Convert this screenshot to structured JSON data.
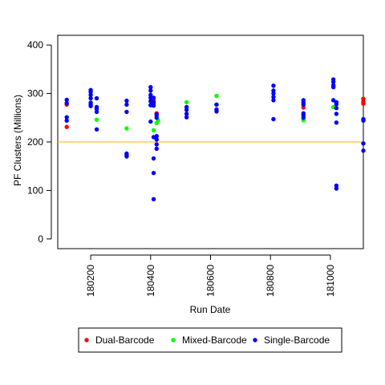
{
  "chart_data": {
    "type": "scatter",
    "title": "",
    "xlabel": "Run Date",
    "ylabel": "PF Clusters (Millions)",
    "xlim": [
      180090,
      181110
    ],
    "ylim": [
      -20,
      420
    ],
    "xticks": [
      180200,
      180400,
      180600,
      180800,
      181000
    ],
    "xtick_labels": [
      "180200",
      "180400",
      "180600",
      "180800",
      "181000"
    ],
    "yticks": [
      0,
      100,
      200,
      300,
      400
    ],
    "ytick_labels": [
      "0",
      "100",
      "200",
      "300",
      "400"
    ],
    "threshold_line": {
      "y": 200,
      "color": "#FFB000"
    },
    "grid": false,
    "legend_position": "bottom",
    "series": [
      {
        "name": "Dual-Barcode",
        "color": "#FF0000",
        "points": [
          [
            180120,
            277
          ],
          [
            180120,
            231
          ],
          [
            180410,
            286
          ],
          [
            180410,
            280
          ],
          [
            180420,
            259
          ],
          [
            180420,
            254
          ],
          [
            180910,
            271
          ],
          [
            181110,
            289
          ],
          [
            181110,
            283
          ],
          [
            181110,
            279
          ]
        ]
      },
      {
        "name": "Mixed-Barcode",
        "color": "#00FF00",
        "points": [
          [
            180220,
            246
          ],
          [
            180320,
            228
          ],
          [
            180400,
            276
          ],
          [
            180410,
            224
          ],
          [
            180420,
            239
          ],
          [
            180425,
            245
          ],
          [
            180520,
            282
          ],
          [
            180620,
            295
          ],
          [
            180620,
            277
          ],
          [
            180910,
            245
          ],
          [
            181010,
            272
          ]
        ]
      },
      {
        "name": "Single-Barcode",
        "color": "#0000FF",
        "points": [
          [
            180120,
            287
          ],
          [
            180120,
            280
          ],
          [
            180120,
            251
          ],
          [
            180120,
            244
          ],
          [
            180200,
            307
          ],
          [
            180200,
            303
          ],
          [
            180200,
            297
          ],
          [
            180200,
            290
          ],
          [
            180200,
            281
          ],
          [
            180200,
            277
          ],
          [
            180200,
            274
          ],
          [
            180220,
            290
          ],
          [
            180220,
            272
          ],
          [
            180220,
            268
          ],
          [
            180220,
            262
          ],
          [
            180220,
            226
          ],
          [
            180320,
            285
          ],
          [
            180320,
            277
          ],
          [
            180320,
            262
          ],
          [
            180320,
            176
          ],
          [
            180320,
            173
          ],
          [
            180320,
            170
          ],
          [
            180400,
            313
          ],
          [
            180400,
            306
          ],
          [
            180400,
            297
          ],
          [
            180400,
            291
          ],
          [
            180400,
            284
          ],
          [
            180400,
            276
          ],
          [
            180400,
            242
          ],
          [
            180410,
            291
          ],
          [
            180410,
            282
          ],
          [
            180410,
            275
          ],
          [
            180410,
            210
          ],
          [
            180410,
            166
          ],
          [
            180410,
            136
          ],
          [
            180410,
            82
          ],
          [
            180420,
            257
          ],
          [
            180420,
            250
          ],
          [
            180420,
            212
          ],
          [
            180420,
            205
          ],
          [
            180420,
            195
          ],
          [
            180420,
            186
          ],
          [
            180520,
            272
          ],
          [
            180520,
            266
          ],
          [
            180520,
            258
          ],
          [
            180520,
            251
          ],
          [
            180620,
            277
          ],
          [
            180620,
            267
          ],
          [
            180620,
            263
          ],
          [
            180810,
            316
          ],
          [
            180810,
            306
          ],
          [
            180810,
            300
          ],
          [
            180810,
            293
          ],
          [
            180810,
            286
          ],
          [
            180810,
            247
          ],
          [
            180910,
            286
          ],
          [
            180910,
            281
          ],
          [
            180910,
            277
          ],
          [
            180910,
            259
          ],
          [
            180910,
            255
          ],
          [
            180910,
            250
          ],
          [
            181010,
            329
          ],
          [
            181010,
            324
          ],
          [
            181010,
            317
          ],
          [
            181010,
            313
          ],
          [
            181010,
            286
          ],
          [
            181020,
            282
          ],
          [
            181020,
            278
          ],
          [
            181020,
            270
          ],
          [
            181020,
            258
          ],
          [
            181020,
            240
          ],
          [
            181020,
            110
          ],
          [
            181020,
            104
          ],
          [
            181110,
            247
          ],
          [
            181110,
            244
          ],
          [
            181110,
            197
          ],
          [
            181110,
            182
          ]
        ]
      }
    ]
  }
}
